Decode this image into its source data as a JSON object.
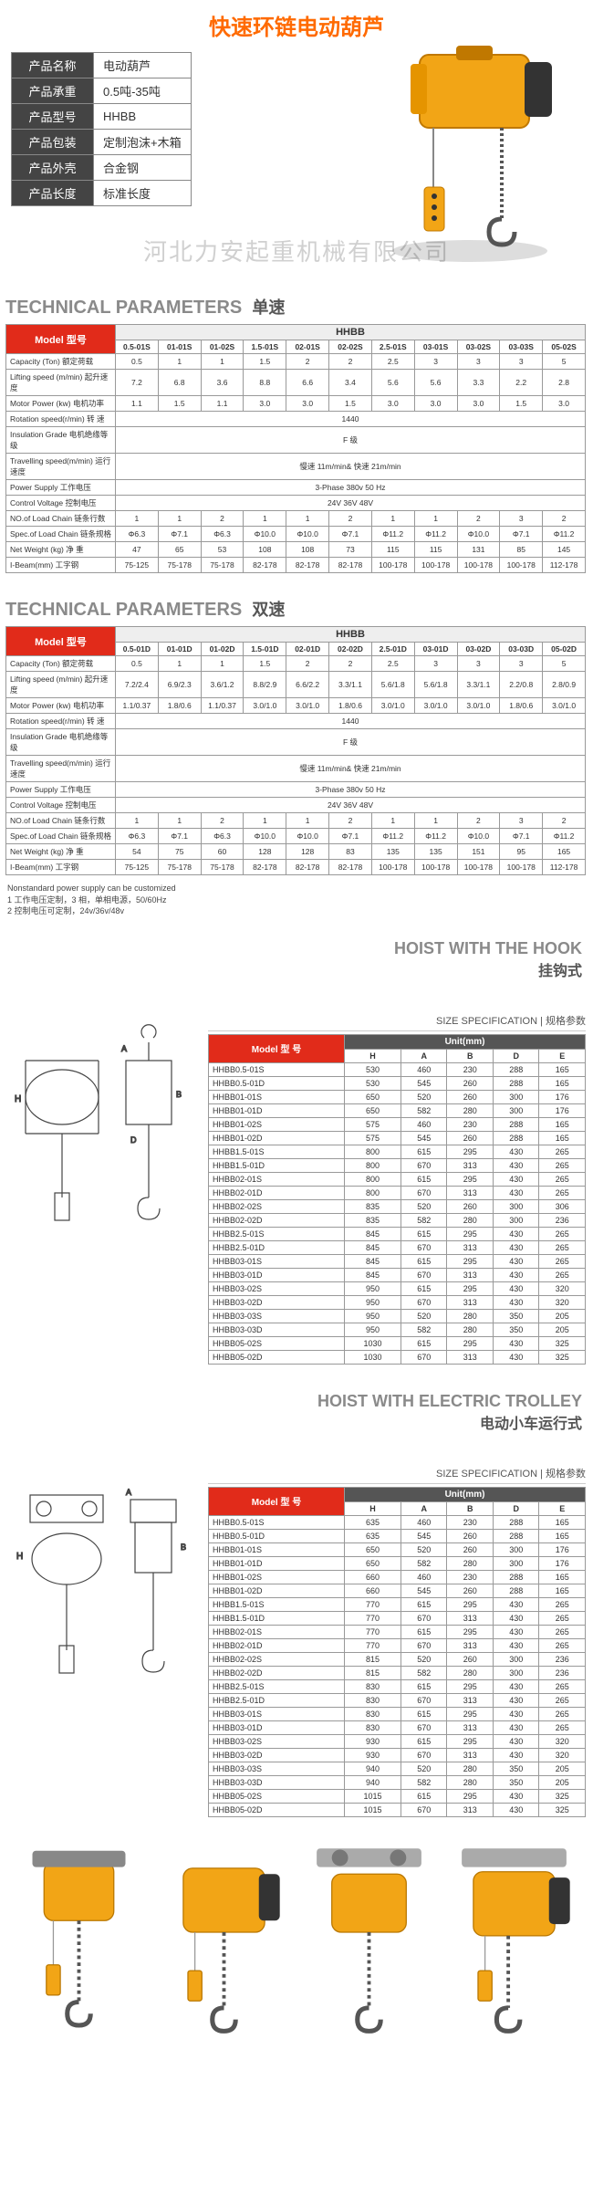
{
  "header": {
    "title": "快速环链电动葫芦",
    "product_image_color": "#f2a516",
    "watermark": "河北力安起重机械有限公司",
    "info": [
      {
        "k": "产品名称",
        "v": "电动葫芦"
      },
      {
        "k": "产品承重",
        "v": "0.5吨-35吨"
      },
      {
        "k": "产品型号",
        "v": "HHBB"
      },
      {
        "k": "产品包装",
        "v": "定制泡沫+木箱"
      },
      {
        "k": "产品外壳",
        "v": "合金钢"
      },
      {
        "k": "产品长度",
        "v": "标准长度"
      }
    ]
  },
  "params_single": {
    "title_en": "TECHNICAL PARAMETERS",
    "title_cn": "单速",
    "model_label": "Model 型号",
    "big_header": "HHBB",
    "cols": [
      "0.5-01S",
      "01-01S",
      "01-02S",
      "1.5-01S",
      "02-01S",
      "02-02S",
      "2.5-01S",
      "03-01S",
      "03-02S",
      "03-03S",
      "05-02S"
    ],
    "rows": [
      {
        "lbl": "Capacity (Ton) 额定荷载",
        "v": [
          "0.5",
          "1",
          "1",
          "1.5",
          "2",
          "2",
          "2.5",
          "3",
          "3",
          "3",
          "5"
        ]
      },
      {
        "lbl": "Lifting speed (m/min) 起升速度",
        "v": [
          "7.2",
          "6.8",
          "3.6",
          "8.8",
          "6.6",
          "3.4",
          "5.6",
          "5.6",
          "3.3",
          "2.2",
          "2.8"
        ]
      },
      {
        "lbl": "Motor Power (kw) 电机功率",
        "v": [
          "1.1",
          "1.5",
          "1.1",
          "3.0",
          "3.0",
          "1.5",
          "3.0",
          "3.0",
          "3.0",
          "1.5",
          "3.0"
        ]
      },
      {
        "lbl": "Rotation speed(r/min) 转 速",
        "span": "1440"
      },
      {
        "lbl": "Insulation Grade 电机绝缘等级",
        "span": "F 级"
      },
      {
        "lbl": "Travelling speed(m/min) 运行速度",
        "span": "慢速 11m/min& 快速 21m/min"
      },
      {
        "lbl": "Power Supply 工作电压",
        "span": "3-Phase 380v 50 Hz"
      },
      {
        "lbl": "Control Voltage 控制电压",
        "span": "24V 36V 48V"
      },
      {
        "lbl": "NO.of Load Chain 链条行数",
        "v": [
          "1",
          "1",
          "2",
          "1",
          "1",
          "2",
          "1",
          "1",
          "2",
          "3",
          "2"
        ]
      },
      {
        "lbl": "Spec.of Load Chain 链条规格",
        "v": [
          "Φ6.3",
          "Φ7.1",
          "Φ6.3",
          "Φ10.0",
          "Φ10.0",
          "Φ7.1",
          "Φ11.2",
          "Φ11.2",
          "Φ10.0",
          "Φ7.1",
          "Φ11.2"
        ]
      },
      {
        "lbl": "Net Weight (kg) 净 重",
        "v": [
          "47",
          "65",
          "53",
          "108",
          "108",
          "73",
          "115",
          "115",
          "131",
          "85",
          "145"
        ]
      },
      {
        "lbl": "I-Beam(mm) 工字钢",
        "v": [
          "75-125",
          "75-178",
          "75-178",
          "82-178",
          "82-178",
          "82-178",
          "100-178",
          "100-178",
          "100-178",
          "100-178",
          "112-178"
        ]
      }
    ]
  },
  "params_double": {
    "title_en": "TECHNICAL PARAMETERS",
    "title_cn": "双速",
    "model_label": "Model 型号",
    "big_header": "HHBB",
    "cols": [
      "0.5-01D",
      "01-01D",
      "01-02D",
      "1.5-01D",
      "02-01D",
      "02-02D",
      "2.5-01D",
      "03-01D",
      "03-02D",
      "03-03D",
      "05-02D"
    ],
    "rows": [
      {
        "lbl": "Capacity (Ton) 额定荷载",
        "v": [
          "0.5",
          "1",
          "1",
          "1.5",
          "2",
          "2",
          "2.5",
          "3",
          "3",
          "3",
          "5"
        ]
      },
      {
        "lbl": "Lifting speed (m/min) 起升速度",
        "v": [
          "7.2/2.4",
          "6.9/2.3",
          "3.6/1.2",
          "8.8/2.9",
          "6.6/2.2",
          "3.3/1.1",
          "5.6/1.8",
          "5.6/1.8",
          "3.3/1.1",
          "2.2/0.8",
          "2.8/0.9"
        ]
      },
      {
        "lbl": "Motor Power (kw) 电机功率",
        "v": [
          "1.1/0.37",
          "1.8/0.6",
          "1.1/0.37",
          "3.0/1.0",
          "3.0/1.0",
          "1.8/0.6",
          "3.0/1.0",
          "3.0/1.0",
          "3.0/1.0",
          "1.8/0.6",
          "3.0/1.0"
        ]
      },
      {
        "lbl": "Rotation speed(r/min) 转 速",
        "span": "1440"
      },
      {
        "lbl": "Insulation Grade 电机绝缘等级",
        "span": "F 级"
      },
      {
        "lbl": "Travelling speed(m/min) 运行速度",
        "span": "慢速 11m/min& 快速 21m/min"
      },
      {
        "lbl": "Power Supply 工作电压",
        "span": "3-Phase 380v 50 Hz"
      },
      {
        "lbl": "Control Voltage 控制电压",
        "span": "24V 36V 48V"
      },
      {
        "lbl": "NO.of Load Chain 链条行数",
        "v": [
          "1",
          "1",
          "2",
          "1",
          "1",
          "2",
          "1",
          "1",
          "2",
          "3",
          "2"
        ]
      },
      {
        "lbl": "Spec.of Load Chain 链条规格",
        "v": [
          "Φ6.3",
          "Φ7.1",
          "Φ6.3",
          "Φ10.0",
          "Φ10.0",
          "Φ7.1",
          "Φ11.2",
          "Φ11.2",
          "Φ10.0",
          "Φ7.1",
          "Φ11.2"
        ]
      },
      {
        "lbl": "Net Weight (kg) 净 重",
        "v": [
          "54",
          "75",
          "60",
          "128",
          "128",
          "83",
          "135",
          "135",
          "151",
          "95",
          "165"
        ]
      },
      {
        "lbl": "I-Beam(mm) 工字钢",
        "v": [
          "75-125",
          "75-178",
          "75-178",
          "82-178",
          "82-178",
          "82-178",
          "100-178",
          "100-178",
          "100-178",
          "100-178",
          "112-178"
        ]
      }
    ],
    "notes": [
      "Nonstandard power supply can be customized",
      "1 工作电压定制，3 相，单相电源，50/60Hz",
      "2 控制电压可定制，24v/36v/48v"
    ]
  },
  "hook": {
    "title_en": "HOIST WITH THE HOOK",
    "title_cn": "挂钩式",
    "size_label": "SIZE SPECIFICATION | 规格参数",
    "model_label": "Model\n型 号",
    "unit_label": "Unit(mm)",
    "cols": [
      "H",
      "A",
      "B",
      "D",
      "E"
    ],
    "rows": [
      [
        "HHBB0.5-01S",
        "530",
        "460",
        "230",
        "288",
        "165"
      ],
      [
        "HHBB0.5-01D",
        "530",
        "545",
        "260",
        "288",
        "165"
      ],
      [
        "HHBB01-01S",
        "650",
        "520",
        "260",
        "300",
        "176"
      ],
      [
        "HHBB01-01D",
        "650",
        "582",
        "280",
        "300",
        "176"
      ],
      [
        "HHBB01-02S",
        "575",
        "460",
        "230",
        "288",
        "165"
      ],
      [
        "HHBB01-02D",
        "575",
        "545",
        "260",
        "288",
        "165"
      ],
      [
        "HHBB1.5-01S",
        "800",
        "615",
        "295",
        "430",
        "265"
      ],
      [
        "HHBB1.5-01D",
        "800",
        "670",
        "313",
        "430",
        "265"
      ],
      [
        "HHBB02-01S",
        "800",
        "615",
        "295",
        "430",
        "265"
      ],
      [
        "HHBB02-01D",
        "800",
        "670",
        "313",
        "430",
        "265"
      ],
      [
        "HHBB02-02S",
        "835",
        "520",
        "260",
        "300",
        "306"
      ],
      [
        "HHBB02-02D",
        "835",
        "582",
        "280",
        "300",
        "236"
      ],
      [
        "HHBB2.5-01S",
        "845",
        "615",
        "295",
        "430",
        "265"
      ],
      [
        "HHBB2.5-01D",
        "845",
        "670",
        "313",
        "430",
        "265"
      ],
      [
        "HHBB03-01S",
        "845",
        "615",
        "295",
        "430",
        "265"
      ],
      [
        "HHBB03-01D",
        "845",
        "670",
        "313",
        "430",
        "265"
      ],
      [
        "HHBB03-02S",
        "950",
        "615",
        "295",
        "430",
        "320"
      ],
      [
        "HHBB03-02D",
        "950",
        "670",
        "313",
        "430",
        "320"
      ],
      [
        "HHBB03-03S",
        "950",
        "520",
        "280",
        "350",
        "205"
      ],
      [
        "HHBB03-03D",
        "950",
        "582",
        "280",
        "350",
        "205"
      ],
      [
        "HHBB05-02S",
        "1030",
        "615",
        "295",
        "430",
        "325"
      ],
      [
        "HHBB05-02D",
        "1030",
        "670",
        "313",
        "430",
        "325"
      ]
    ]
  },
  "trolley": {
    "title_en": "HOIST WITH ELECTRIC TROLLEY",
    "title_cn": "电动小车运行式",
    "size_label": "SIZE SPECIFICATION | 规格参数",
    "model_label": "Model\n型 号",
    "unit_label": "Unit(mm)",
    "cols": [
      "H",
      "A",
      "B",
      "D",
      "E"
    ],
    "rows": [
      [
        "HHBB0.5-01S",
        "635",
        "460",
        "230",
        "288",
        "165"
      ],
      [
        "HHBB0.5-01D",
        "635",
        "545",
        "260",
        "288",
        "165"
      ],
      [
        "HHBB01-01S",
        "650",
        "520",
        "260",
        "300",
        "176"
      ],
      [
        "HHBB01-01D",
        "650",
        "582",
        "280",
        "300",
        "176"
      ],
      [
        "HHBB01-02S",
        "660",
        "460",
        "230",
        "288",
        "165"
      ],
      [
        "HHBB01-02D",
        "660",
        "545",
        "260",
        "288",
        "165"
      ],
      [
        "HHBB1.5-01S",
        "770",
        "615",
        "295",
        "430",
        "265"
      ],
      [
        "HHBB1.5-01D",
        "770",
        "670",
        "313",
        "430",
        "265"
      ],
      [
        "HHBB02-01S",
        "770",
        "615",
        "295",
        "430",
        "265"
      ],
      [
        "HHBB02-01D",
        "770",
        "670",
        "313",
        "430",
        "265"
      ],
      [
        "HHBB02-02S",
        "815",
        "520",
        "260",
        "300",
        "236"
      ],
      [
        "HHBB02-02D",
        "815",
        "582",
        "280",
        "300",
        "236"
      ],
      [
        "HHBB2.5-01S",
        "830",
        "615",
        "295",
        "430",
        "265"
      ],
      [
        "HHBB2.5-01D",
        "830",
        "670",
        "313",
        "430",
        "265"
      ],
      [
        "HHBB03-01S",
        "830",
        "615",
        "295",
        "430",
        "265"
      ],
      [
        "HHBB03-01D",
        "830",
        "670",
        "313",
        "430",
        "265"
      ],
      [
        "HHBB03-02S",
        "930",
        "615",
        "295",
        "430",
        "320"
      ],
      [
        "HHBB03-02D",
        "930",
        "670",
        "313",
        "430",
        "320"
      ],
      [
        "HHBB03-03S",
        "940",
        "520",
        "280",
        "350",
        "205"
      ],
      [
        "HHBB03-03D",
        "940",
        "582",
        "280",
        "350",
        "205"
      ],
      [
        "HHBB05-02S",
        "1015",
        "615",
        "295",
        "430",
        "325"
      ],
      [
        "HHBB05-02D",
        "1015",
        "670",
        "313",
        "430",
        "325"
      ]
    ]
  },
  "colors": {
    "accent": "#e12b1a",
    "product": "#f2a516",
    "title": "#ff6a00",
    "heading": "#8a8a8a"
  }
}
